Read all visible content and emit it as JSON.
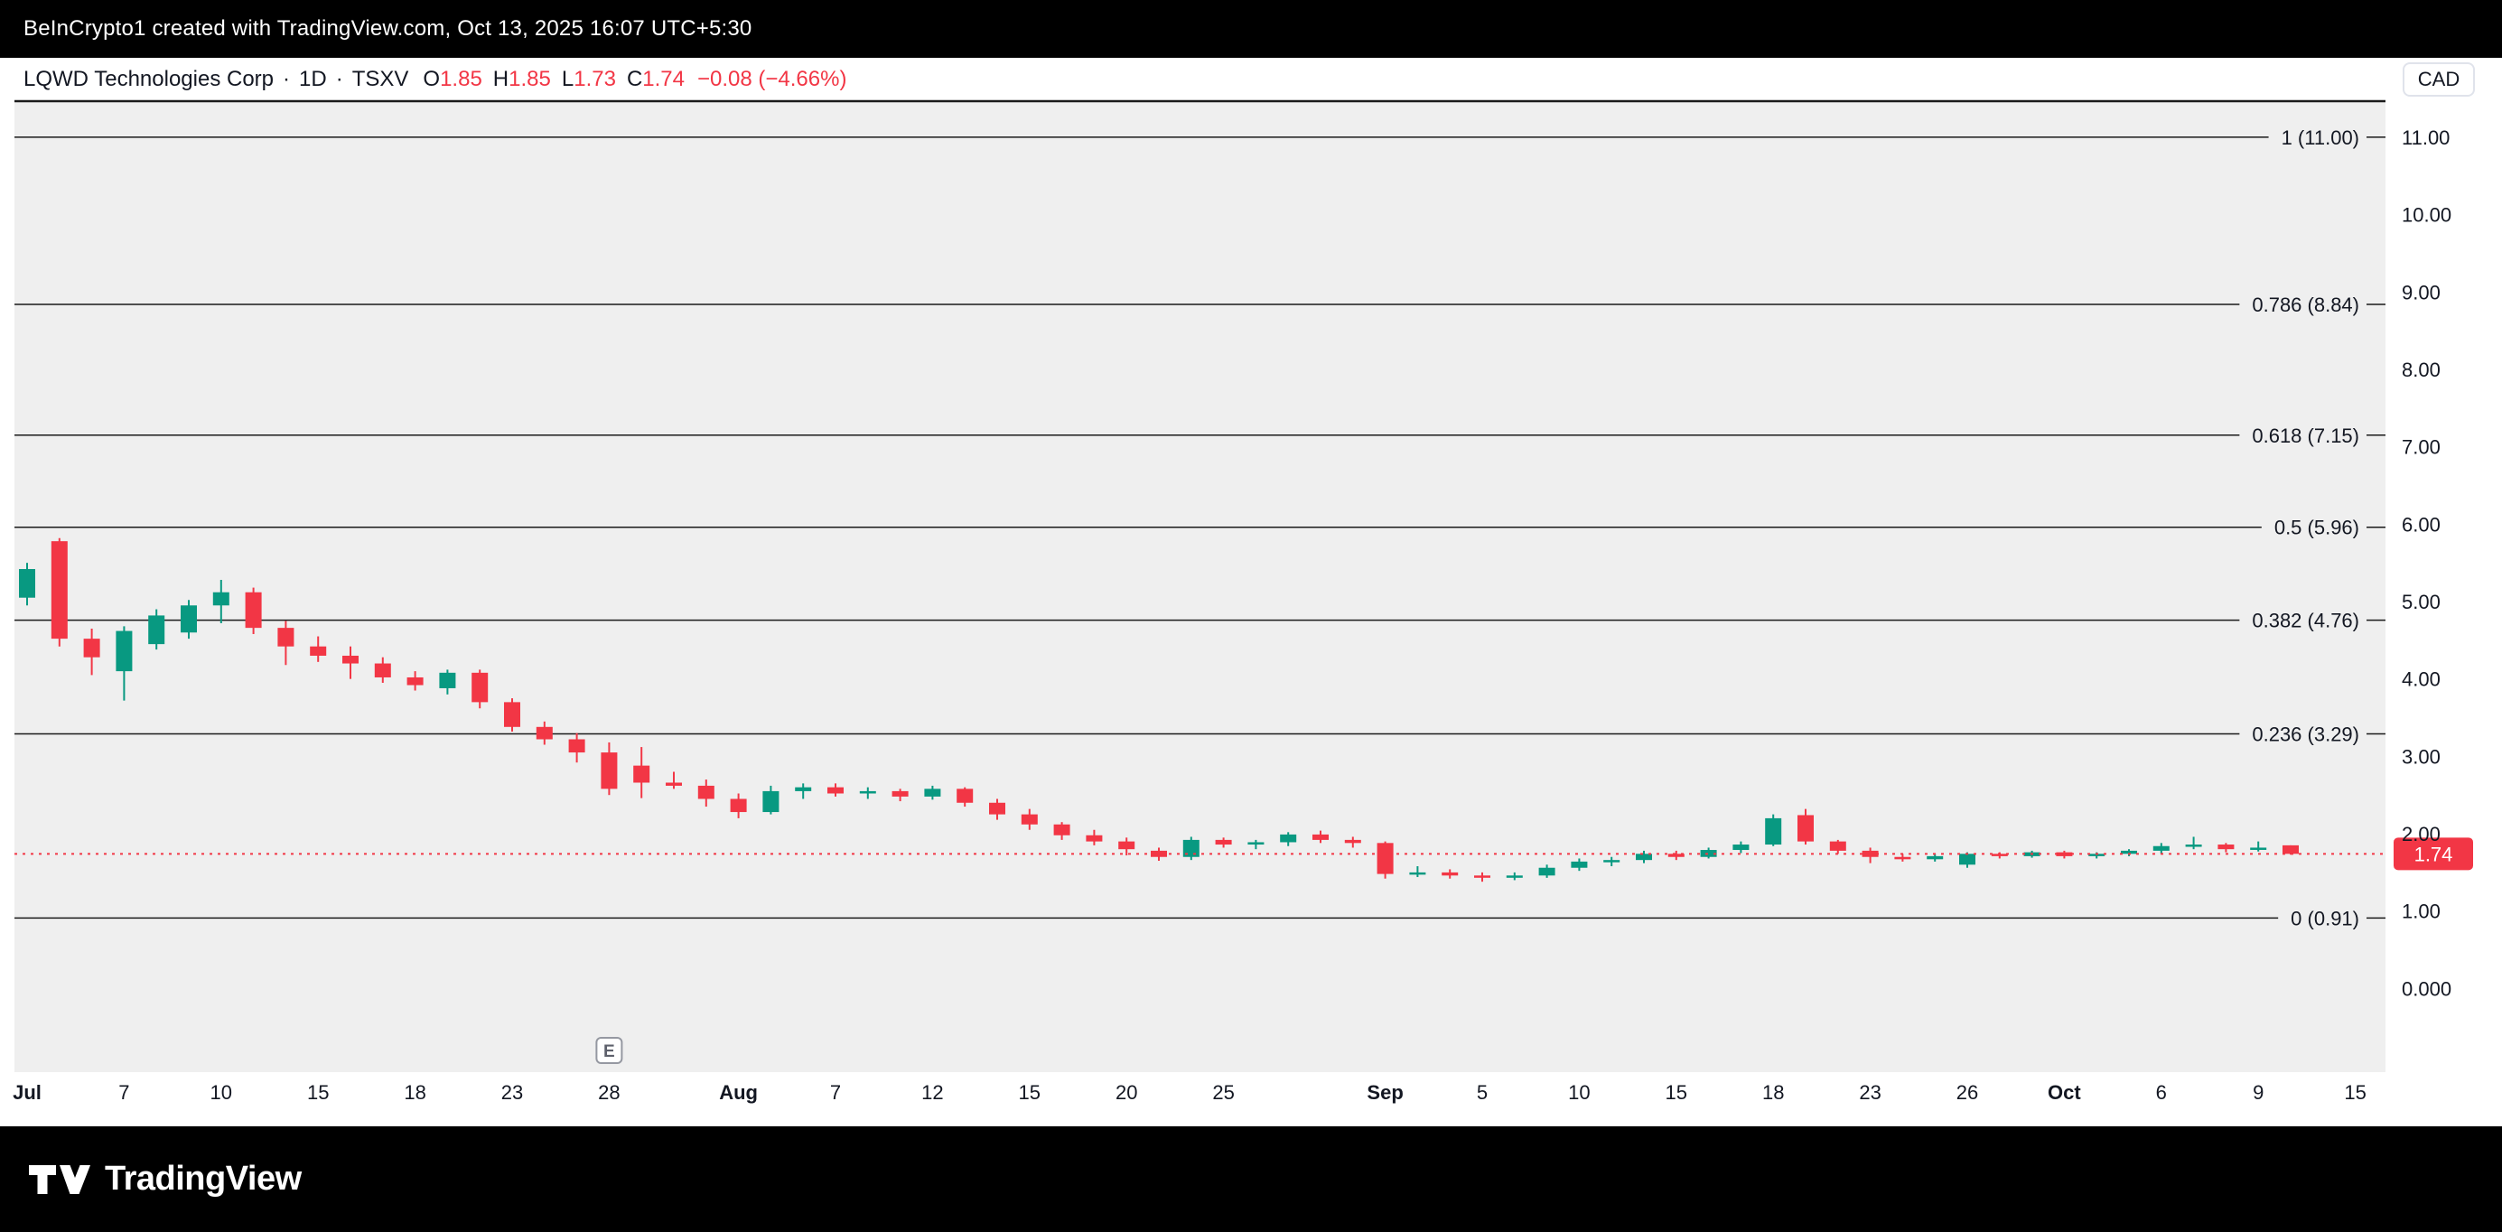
{
  "top_bar": {
    "attribution": "BeInCrypto1 created with TradingView.com, Oct 13, 2025 16:07 UTC+5:30"
  },
  "header": {
    "symbol": "LQWD Technologies Corp",
    "separator": "·",
    "interval": "1D",
    "exchange": "TSXV",
    "ohlc": {
      "o_label": "O",
      "o": "1.85",
      "h_label": "H",
      "h": "1.85",
      "l_label": "L",
      "l": "1.73",
      "c_label": "C",
      "c": "1.74"
    },
    "change": "−0.08 (−4.66%)",
    "currency_button": "CAD"
  },
  "footer": {
    "brand": "TradingView"
  },
  "chart_data": {
    "type": "candlestick",
    "symbol": "LQWD Technologies Corp",
    "interval": "1D",
    "exchange": "TSXV",
    "currency": "CAD",
    "colors": {
      "up": "#089981",
      "down": "#F23645",
      "fib_line": "#1a1a1a",
      "plot_bg": "#efefef",
      "axis_text": "#131722",
      "marker": "#9598a1"
    },
    "y_axis": {
      "labels": [
        "11.00",
        "10.00",
        "9.00",
        "8.00",
        "7.00",
        "6.00",
        "5.00",
        "4.00",
        "3.00",
        "2.00",
        "1.00",
        "0.000"
      ],
      "values": [
        11,
        10,
        9,
        8,
        7,
        6,
        5,
        4,
        3,
        2,
        1,
        0
      ],
      "range": [
        0,
        11.5
      ]
    },
    "x_axis": {
      "ticks": [
        {
          "i": 0,
          "label": "Jul",
          "bold": true
        },
        {
          "i": 3,
          "label": "7",
          "bold": false
        },
        {
          "i": 6,
          "label": "10",
          "bold": false
        },
        {
          "i": 9,
          "label": "15",
          "bold": false
        },
        {
          "i": 12,
          "label": "18",
          "bold": false
        },
        {
          "i": 15,
          "label": "23",
          "bold": false
        },
        {
          "i": 18,
          "label": "28",
          "bold": false
        },
        {
          "i": 22,
          "label": "Aug",
          "bold": true
        },
        {
          "i": 25,
          "label": "7",
          "bold": false
        },
        {
          "i": 28,
          "label": "12",
          "bold": false
        },
        {
          "i": 31,
          "label": "15",
          "bold": false
        },
        {
          "i": 34,
          "label": "20",
          "bold": false
        },
        {
          "i": 37,
          "label": "25",
          "bold": false
        },
        {
          "i": 42,
          "label": "Sep",
          "bold": true
        },
        {
          "i": 45,
          "label": "5",
          "bold": false
        },
        {
          "i": 48,
          "label": "10",
          "bold": false
        },
        {
          "i": 51,
          "label": "15",
          "bold": false
        },
        {
          "i": 54,
          "label": "18",
          "bold": false
        },
        {
          "i": 57,
          "label": "23",
          "bold": false
        },
        {
          "i": 60,
          "label": "26",
          "bold": false
        },
        {
          "i": 63,
          "label": "Oct",
          "bold": true
        },
        {
          "i": 66,
          "label": "6",
          "bold": false
        },
        {
          "i": 69,
          "label": "9",
          "bold": false
        },
        {
          "i": 72,
          "label": "15",
          "bold": false
        }
      ]
    },
    "fib_levels": [
      {
        "label": "1 (11.00)",
        "ratio": 1,
        "price": 11.0
      },
      {
        "label": "0.786 (8.84)",
        "ratio": 0.786,
        "price": 8.84
      },
      {
        "label": "0.618 (7.15)",
        "ratio": 0.618,
        "price": 7.15
      },
      {
        "label": "0.5 (5.96)",
        "ratio": 0.5,
        "price": 5.96
      },
      {
        "label": "0.382 (4.76)",
        "ratio": 0.382,
        "price": 4.76
      },
      {
        "label": "0.236 (3.29)",
        "ratio": 0.236,
        "price": 3.29
      },
      {
        "label": "0 (0.91)",
        "ratio": 0,
        "price": 0.91
      }
    ],
    "last_price": {
      "value": "1.74",
      "price": 1.74,
      "color": "#F23645"
    },
    "earnings_marker": {
      "index": 18,
      "label": "E"
    },
    "candles": [
      {
        "date": "Jul 2",
        "o": 5.05,
        "h": 5.5,
        "l": 4.95,
        "c": 5.42
      },
      {
        "date": "Jul 3",
        "o": 5.78,
        "h": 5.82,
        "l": 4.42,
        "c": 4.52
      },
      {
        "date": "Jul 4",
        "o": 4.52,
        "h": 4.65,
        "l": 4.05,
        "c": 4.28
      },
      {
        "date": "Jul 7",
        "o": 4.1,
        "h": 4.68,
        "l": 3.72,
        "c": 4.62
      },
      {
        "date": "Jul 8",
        "o": 4.45,
        "h": 4.9,
        "l": 4.38,
        "c": 4.82
      },
      {
        "date": "Jul 9",
        "o": 4.6,
        "h": 5.02,
        "l": 4.52,
        "c": 4.95
      },
      {
        "date": "Jul 10",
        "o": 4.95,
        "h": 5.28,
        "l": 4.72,
        "c": 5.12
      },
      {
        "date": "Jul 11",
        "o": 5.12,
        "h": 5.18,
        "l": 4.58,
        "c": 4.66
      },
      {
        "date": "Jul 14",
        "o": 4.66,
        "h": 4.75,
        "l": 4.18,
        "c": 4.42
      },
      {
        "date": "Jul 15",
        "o": 4.42,
        "h": 4.55,
        "l": 4.22,
        "c": 4.3
      },
      {
        "date": "Jul 16",
        "o": 4.3,
        "h": 4.42,
        "l": 4.0,
        "c": 4.2
      },
      {
        "date": "Jul 17",
        "o": 4.2,
        "h": 4.28,
        "l": 3.95,
        "c": 4.02
      },
      {
        "date": "Jul 18",
        "o": 4.02,
        "h": 4.1,
        "l": 3.85,
        "c": 3.92
      },
      {
        "date": "Jul 21",
        "o": 3.88,
        "h": 4.12,
        "l": 3.8,
        "c": 4.08
      },
      {
        "date": "Jul 22",
        "o": 4.08,
        "h": 4.12,
        "l": 3.62,
        "c": 3.7
      },
      {
        "date": "Jul 23",
        "o": 3.7,
        "h": 3.75,
        "l": 3.32,
        "c": 3.38
      },
      {
        "date": "Jul 24",
        "o": 3.38,
        "h": 3.45,
        "l": 3.15,
        "c": 3.22
      },
      {
        "date": "Jul 25",
        "o": 3.22,
        "h": 3.3,
        "l": 2.92,
        "c": 3.05
      },
      {
        "date": "Jul 28",
        "o": 3.05,
        "h": 3.18,
        "l": 2.5,
        "c": 2.58
      },
      {
        "date": "Jul 29",
        "o": 2.88,
        "h": 3.12,
        "l": 2.46,
        "c": 2.66
      },
      {
        "date": "Jul 30",
        "o": 2.66,
        "h": 2.8,
        "l": 2.58,
        "c": 2.62
      },
      {
        "date": "Jul 31",
        "o": 2.62,
        "h": 2.7,
        "l": 2.35,
        "c": 2.45
      },
      {
        "date": "Aug 1",
        "o": 2.45,
        "h": 2.52,
        "l": 2.2,
        "c": 2.28
      },
      {
        "date": "Aug 5",
        "o": 2.28,
        "h": 2.62,
        "l": 2.25,
        "c": 2.55
      },
      {
        "date": "Aug 6",
        "o": 2.55,
        "h": 2.65,
        "l": 2.45,
        "c": 2.6
      },
      {
        "date": "Aug 7",
        "o": 2.6,
        "h": 2.65,
        "l": 2.48,
        "c": 2.52
      },
      {
        "date": "Aug 8",
        "o": 2.52,
        "h": 2.6,
        "l": 2.45,
        "c": 2.55
      },
      {
        "date": "Aug 11",
        "o": 2.55,
        "h": 2.58,
        "l": 2.42,
        "c": 2.48
      },
      {
        "date": "Aug 12",
        "o": 2.48,
        "h": 2.62,
        "l": 2.44,
        "c": 2.58
      },
      {
        "date": "Aug 13",
        "o": 2.58,
        "h": 2.6,
        "l": 2.35,
        "c": 2.4
      },
      {
        "date": "Aug 14",
        "o": 2.4,
        "h": 2.45,
        "l": 2.18,
        "c": 2.25
      },
      {
        "date": "Aug 15",
        "o": 2.25,
        "h": 2.32,
        "l": 2.05,
        "c": 2.12
      },
      {
        "date": "Aug 18",
        "o": 2.12,
        "h": 2.15,
        "l": 1.92,
        "c": 1.98
      },
      {
        "date": "Aug 19",
        "o": 1.98,
        "h": 2.05,
        "l": 1.85,
        "c": 1.9
      },
      {
        "date": "Aug 20",
        "o": 1.9,
        "h": 1.95,
        "l": 1.72,
        "c": 1.8
      },
      {
        "date": "Aug 21",
        "o": 1.78,
        "h": 1.82,
        "l": 1.65,
        "c": 1.7
      },
      {
        "date": "Aug 22",
        "o": 1.7,
        "h": 1.96,
        "l": 1.66,
        "c": 1.92
      },
      {
        "date": "Aug 25",
        "o": 1.92,
        "h": 1.95,
        "l": 1.82,
        "c": 1.86
      },
      {
        "date": "Aug 26",
        "o": 1.86,
        "h": 1.92,
        "l": 1.8,
        "c": 1.89
      },
      {
        "date": "Aug 27",
        "o": 1.89,
        "h": 2.02,
        "l": 1.84,
        "c": 1.99
      },
      {
        "date": "Aug 28",
        "o": 1.99,
        "h": 2.04,
        "l": 1.88,
        "c": 1.92
      },
      {
        "date": "Aug 29",
        "o": 1.92,
        "h": 1.96,
        "l": 1.82,
        "c": 1.88
      },
      {
        "date": "Sep 2",
        "o": 1.88,
        "h": 1.9,
        "l": 1.42,
        "c": 1.48
      },
      {
        "date": "Sep 3",
        "o": 1.48,
        "h": 1.58,
        "l": 1.44,
        "c": 1.5
      },
      {
        "date": "Sep 4",
        "o": 1.5,
        "h": 1.54,
        "l": 1.42,
        "c": 1.46
      },
      {
        "date": "Sep 5",
        "o": 1.46,
        "h": 1.5,
        "l": 1.38,
        "c": 1.44
      },
      {
        "date": "Sep 8",
        "o": 1.44,
        "h": 1.5,
        "l": 1.4,
        "c": 1.46
      },
      {
        "date": "Sep 9",
        "o": 1.46,
        "h": 1.6,
        "l": 1.43,
        "c": 1.56
      },
      {
        "date": "Sep 10",
        "o": 1.56,
        "h": 1.68,
        "l": 1.52,
        "c": 1.64
      },
      {
        "date": "Sep 11",
        "o": 1.64,
        "h": 1.7,
        "l": 1.58,
        "c": 1.66
      },
      {
        "date": "Sep 12",
        "o": 1.66,
        "h": 1.78,
        "l": 1.62,
        "c": 1.74
      },
      {
        "date": "Sep 15",
        "o": 1.74,
        "h": 1.78,
        "l": 1.66,
        "c": 1.7
      },
      {
        "date": "Sep 16",
        "o": 1.7,
        "h": 1.82,
        "l": 1.68,
        "c": 1.79
      },
      {
        "date": "Sep 17",
        "o": 1.79,
        "h": 1.9,
        "l": 1.75,
        "c": 1.86
      },
      {
        "date": "Sep 18",
        "o": 1.86,
        "h": 2.25,
        "l": 1.84,
        "c": 2.2
      },
      {
        "date": "Sep 19",
        "o": 2.24,
        "h": 2.32,
        "l": 1.86,
        "c": 1.9
      },
      {
        "date": "Sep 22",
        "o": 1.9,
        "h": 1.92,
        "l": 1.74,
        "c": 1.78
      },
      {
        "date": "Sep 23",
        "o": 1.78,
        "h": 1.82,
        "l": 1.62,
        "c": 1.7
      },
      {
        "date": "Sep 24",
        "o": 1.7,
        "h": 1.74,
        "l": 1.64,
        "c": 1.67
      },
      {
        "date": "Sep 25",
        "o": 1.67,
        "h": 1.74,
        "l": 1.64,
        "c": 1.71
      },
      {
        "date": "Sep 26",
        "o": 1.6,
        "h": 1.76,
        "l": 1.56,
        "c": 1.74
      },
      {
        "date": "Sep 29",
        "o": 1.74,
        "h": 1.76,
        "l": 1.68,
        "c": 1.71
      },
      {
        "date": "Sep 30",
        "o": 1.71,
        "h": 1.78,
        "l": 1.69,
        "c": 1.76
      },
      {
        "date": "Oct 1",
        "o": 1.76,
        "h": 1.78,
        "l": 1.68,
        "c": 1.71
      },
      {
        "date": "Oct 2",
        "o": 1.71,
        "h": 1.76,
        "l": 1.68,
        "c": 1.74
      },
      {
        "date": "Oct 3",
        "o": 1.74,
        "h": 1.8,
        "l": 1.71,
        "c": 1.78
      },
      {
        "date": "Oct 6",
        "o": 1.78,
        "h": 1.88,
        "l": 1.74,
        "c": 1.84
      },
      {
        "date": "Oct 7",
        "o": 1.84,
        "h": 1.96,
        "l": 1.8,
        "c": 1.86
      },
      {
        "date": "Oct 8",
        "o": 1.86,
        "h": 1.88,
        "l": 1.76,
        "c": 1.8
      },
      {
        "date": "Oct 9",
        "o": 1.8,
        "h": 1.9,
        "l": 1.77,
        "c": 1.82
      },
      {
        "date": "Oct 10",
        "o": 1.85,
        "h": 1.85,
        "l": 1.73,
        "c": 1.74
      }
    ]
  }
}
